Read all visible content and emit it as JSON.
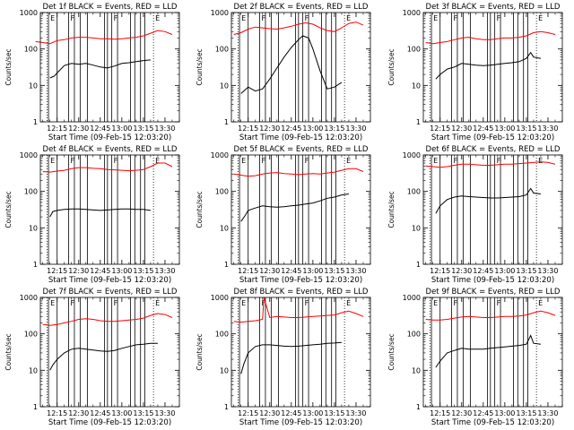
{
  "colors": {
    "events": "#000000",
    "lld": "#ff0000",
    "axes": "#000000"
  },
  "chart_data": [
    {
      "type": "line",
      "title": "Det 1f BLACK = Events, RED = LLD",
      "xlabel": "Start Time (09-Feb-15 12:03:20)",
      "ylabel": "Counts/sec",
      "yscale": "log",
      "ylim": [
        1,
        1000
      ],
      "y_ticks": [
        "1",
        "10",
        "100",
        "1000"
      ],
      "x_ticks": [
        "12:15",
        "12:30",
        "12:45",
        "13:00",
        "13:15",
        "13:30"
      ],
      "series": [
        {
          "name": "BLACK = Events",
          "x": [
            "12:10",
            "12:13",
            "12:15",
            "12:20",
            "12:25",
            "12:30",
            "12:35",
            "12:40",
            "12:45",
            "12:50",
            "12:55",
            "13:00",
            "13:05",
            "13:10",
            "13:15",
            "13:20"
          ],
          "values": [
            16,
            18,
            22,
            35,
            40,
            38,
            40,
            36,
            32,
            30,
            34,
            40,
            42,
            45,
            48,
            50
          ]
        },
        {
          "name": "RED = LLD",
          "x": [
            "12:00",
            "12:05",
            "12:10",
            "12:15",
            "12:20",
            "12:25",
            "12:30",
            "12:35",
            "12:40",
            "12:45",
            "12:50",
            "12:55",
            "13:00",
            "13:05",
            "13:10",
            "13:15",
            "13:20",
            "13:25",
            "13:30",
            "13:35"
          ],
          "values": [
            160,
            150,
            140,
            170,
            180,
            200,
            210,
            210,
            200,
            190,
            190,
            185,
            190,
            200,
            210,
            230,
            270,
            320,
            300,
            250
          ]
        }
      ]
    },
    {
      "type": "line",
      "title": "Det 2f BLACK = Events, RED = LLD",
      "xlabel": "Start Time (09-Feb-15 12:03:20)",
      "ylabel": "Counts/sec",
      "yscale": "log",
      "ylim": [
        1,
        1000
      ],
      "y_ticks": [
        "1",
        "10",
        "100",
        "1000"
      ],
      "x_ticks": [
        "12:15",
        "12:30",
        "12:45",
        "13:00",
        "13:15",
        "13:30"
      ],
      "series": [
        {
          "name": "BLACK = Events",
          "x": [
            "12:10",
            "12:15",
            "12:20",
            "12:25",
            "12:30",
            "12:35",
            "12:40",
            "12:45",
            "12:50",
            "12:53",
            "12:57",
            "13:00",
            "13:05",
            "13:10",
            "13:15",
            "13:20"
          ],
          "values": [
            6,
            9,
            7,
            8,
            15,
            30,
            60,
            110,
            180,
            230,
            200,
            100,
            25,
            8,
            9,
            12
          ]
        },
        {
          "name": "RED = LLD",
          "x": [
            "12:05",
            "12:10",
            "12:15",
            "12:20",
            "12:25",
            "12:30",
            "12:35",
            "12:40",
            "12:45",
            "12:50",
            "12:55",
            "13:00",
            "13:05",
            "13:10",
            "13:15",
            "13:20",
            "13:25",
            "13:30",
            "13:35"
          ],
          "values": [
            250,
            280,
            350,
            400,
            380,
            360,
            350,
            380,
            420,
            480,
            520,
            480,
            380,
            320,
            300,
            380,
            500,
            550,
            450
          ]
        }
      ]
    },
    {
      "type": "line",
      "title": "Det 3f BLACK = Events, RED = LLD",
      "xlabel": "Start Time (09-Feb-15 12:03:20)",
      "ylabel": "Counts/sec",
      "yscale": "log",
      "ylim": [
        1,
        1000
      ],
      "y_ticks": [
        "1",
        "10",
        "100",
        "1000"
      ],
      "x_ticks": [
        "12:15",
        "12:30",
        "12:45",
        "13:00",
        "13:15",
        "13:30"
      ],
      "series": [
        {
          "name": "BLACK = Events",
          "x": [
            "12:12",
            "12:15",
            "12:20",
            "12:25",
            "12:30",
            "12:35",
            "12:40",
            "12:45",
            "12:50",
            "12:55",
            "13:00",
            "13:05",
            "13:10",
            "13:15",
            "13:18",
            "13:20",
            "13:25"
          ],
          "values": [
            15,
            20,
            28,
            32,
            40,
            38,
            36,
            35,
            36,
            38,
            40,
            42,
            45,
            55,
            80,
            60,
            55
          ]
        },
        {
          "name": "RED = LLD",
          "x": [
            "12:05",
            "12:10",
            "12:15",
            "12:20",
            "12:25",
            "12:30",
            "12:35",
            "12:40",
            "12:45",
            "12:50",
            "12:55",
            "13:00",
            "13:05",
            "13:10",
            "13:15",
            "13:20",
            "13:25",
            "13:30",
            "13:35"
          ],
          "values": [
            150,
            140,
            150,
            160,
            180,
            200,
            210,
            190,
            180,
            180,
            190,
            200,
            200,
            210,
            230,
            280,
            300,
            280,
            250
          ]
        }
      ]
    },
    {
      "type": "line",
      "title": "Det 4f BLACK = Events, RED = LLD",
      "xlabel": "Start Time (09-Feb-15 12:03:20)",
      "ylabel": "Counts/sec",
      "yscale": "log",
      "ylim": [
        1,
        1000
      ],
      "y_ticks": [
        "1",
        "10",
        "100",
        "1000"
      ],
      "x_ticks": [
        "12:15",
        "12:30",
        "12:45",
        "13:00",
        "13:15",
        "13:30"
      ],
      "series": [
        {
          "name": "BLACK = Events",
          "x": [
            "12:10",
            "12:12",
            "12:15",
            "12:20",
            "12:25",
            "12:30",
            "12:35",
            "12:40",
            "12:45",
            "12:50",
            "12:55",
            "13:00",
            "13:05",
            "13:10",
            "13:15",
            "13:20"
          ],
          "values": [
            20,
            28,
            30,
            32,
            33,
            33,
            32,
            31,
            30,
            31,
            32,
            33,
            33,
            32,
            32,
            30
          ]
        },
        {
          "name": "RED = LLD",
          "x": [
            "12:05",
            "12:10",
            "12:15",
            "12:20",
            "12:25",
            "12:30",
            "12:35",
            "12:40",
            "12:45",
            "12:50",
            "12:55",
            "13:00",
            "13:05",
            "13:10",
            "13:15",
            "13:20",
            "13:25",
            "13:30",
            "13:35"
          ],
          "values": [
            350,
            340,
            360,
            380,
            420,
            450,
            450,
            430,
            420,
            400,
            390,
            380,
            370,
            380,
            400,
            480,
            600,
            600,
            480
          ]
        }
      ]
    },
    {
      "type": "line",
      "title": "Det 5f BLACK = Events, RED = LLD",
      "xlabel": "Start Time (09-Feb-15 12:03:20)",
      "ylabel": "Counts/sec",
      "yscale": "log",
      "ylim": [
        1,
        1000
      ],
      "y_ticks": [
        "1",
        "10",
        "100",
        "1000"
      ],
      "x_ticks": [
        "12:15",
        "12:30",
        "12:45",
        "13:00",
        "13:15",
        "13:30"
      ],
      "series": [
        {
          "name": "BLACK = Events",
          "x": [
            "12:10",
            "12:13",
            "12:15",
            "12:20",
            "12:25",
            "12:30",
            "12:35",
            "12:40",
            "12:45",
            "12:50",
            "12:55",
            "13:00",
            "13:05",
            "13:10",
            "13:15",
            "13:20",
            "13:25"
          ],
          "values": [
            15,
            22,
            30,
            35,
            40,
            38,
            37,
            38,
            40,
            42,
            45,
            48,
            55,
            65,
            70,
            80,
            85
          ]
        },
        {
          "name": "RED = LLD",
          "x": [
            "12:05",
            "12:10",
            "12:15",
            "12:20",
            "12:25",
            "12:30",
            "12:35",
            "12:40",
            "12:45",
            "12:50",
            "12:55",
            "13:00",
            "13:05",
            "13:10",
            "13:15",
            "13:20",
            "13:25",
            "13:30",
            "13:35"
          ],
          "values": [
            300,
            280,
            260,
            270,
            300,
            320,
            330,
            310,
            300,
            290,
            300,
            310,
            300,
            320,
            340,
            380,
            420,
            420,
            350
          ]
        }
      ]
    },
    {
      "type": "line",
      "title": "Det 6f BLACK = Events, RED = LLD",
      "xlabel": "Start Time (09-Feb-15 12:03:20)",
      "ylabel": "Counts/sec",
      "yscale": "log",
      "ylim": [
        1,
        1000
      ],
      "y_ticks": [
        "1",
        "10",
        "100",
        "1000"
      ],
      "x_ticks": [
        "12:15",
        "12:30",
        "12:45",
        "13:00",
        "13:15",
        "13:30"
      ],
      "series": [
        {
          "name": "BLACK = Events",
          "x": [
            "12:12",
            "12:15",
            "12:20",
            "12:25",
            "12:30",
            "12:35",
            "12:40",
            "12:45",
            "12:50",
            "12:55",
            "13:00",
            "13:05",
            "13:10",
            "13:15",
            "13:18",
            "13:20",
            "13:25"
          ],
          "values": [
            25,
            40,
            60,
            70,
            75,
            72,
            70,
            68,
            66,
            66,
            68,
            70,
            72,
            80,
            120,
            90,
            85
          ]
        },
        {
          "name": "RED = LLD",
          "x": [
            "12:05",
            "12:10",
            "12:15",
            "12:20",
            "12:25",
            "12:30",
            "12:35",
            "12:40",
            "12:45",
            "12:50",
            "12:55",
            "13:00",
            "13:05",
            "13:10",
            "13:15",
            "13:20",
            "13:25",
            "13:30",
            "13:35"
          ],
          "values": [
            500,
            480,
            460,
            480,
            520,
            560,
            560,
            540,
            520,
            520,
            540,
            560,
            560,
            580,
            600,
            620,
            650,
            620,
            560
          ]
        }
      ]
    },
    {
      "type": "line",
      "title": "Det 7f BLACK = Events, RED = LLD",
      "xlabel": "Start Time (09-Feb-15 12:03:20)",
      "ylabel": "Counts/sec",
      "yscale": "log",
      "ylim": [
        1,
        1000
      ],
      "y_ticks": [
        "1",
        "10",
        "100",
        "1000"
      ],
      "x_ticks": [
        "12:15",
        "12:30",
        "12:45",
        "13:00",
        "13:15",
        "13:30"
      ],
      "series": [
        {
          "name": "BLACK = Events",
          "x": [
            "12:10",
            "12:12",
            "12:15",
            "12:20",
            "12:25",
            "12:30",
            "12:35",
            "12:40",
            "12:45",
            "12:50",
            "12:55",
            "13:00",
            "13:05",
            "13:10",
            "13:15",
            "13:20",
            "13:25"
          ],
          "values": [
            10,
            14,
            20,
            30,
            38,
            40,
            38,
            36,
            34,
            33,
            35,
            40,
            45,
            50,
            52,
            55,
            55
          ]
        },
        {
          "name": "RED = LLD",
          "x": [
            "12:05",
            "12:10",
            "12:15",
            "12:20",
            "12:25",
            "12:30",
            "12:35",
            "12:40",
            "12:45",
            "12:50",
            "12:55",
            "13:00",
            "13:05",
            "13:10",
            "13:15",
            "13:20",
            "13:25",
            "13:30",
            "13:35"
          ],
          "values": [
            180,
            170,
            180,
            200,
            220,
            250,
            260,
            250,
            230,
            220,
            220,
            230,
            240,
            250,
            270,
            320,
            360,
            340,
            280
          ]
        }
      ]
    },
    {
      "type": "line",
      "title": "Det 8f BLACK = Events, RED = LLD",
      "xlabel": "Start Time (09-Feb-15 12:03:20)",
      "ylabel": "Counts/sec",
      "yscale": "log",
      "ylim": [
        1,
        1000
      ],
      "y_ticks": [
        "1",
        "10",
        "100",
        "1000"
      ],
      "x_ticks": [
        "12:15",
        "12:30",
        "12:45",
        "13:00",
        "13:15",
        "13:30"
      ],
      "series": [
        {
          "name": "BLACK = Events",
          "x": [
            "12:10",
            "12:12",
            "12:15",
            "12:20",
            "12:25",
            "12:30",
            "12:35",
            "12:40",
            "12:45",
            "12:50",
            "12:55",
            "13:00",
            "13:05",
            "13:10",
            "13:15",
            "13:20"
          ],
          "values": [
            8,
            15,
            30,
            45,
            50,
            50,
            48,
            46,
            45,
            46,
            48,
            50,
            52,
            55,
            56,
            58
          ]
        },
        {
          "name": "RED = LLD",
          "x": [
            "12:05",
            "12:10",
            "12:15",
            "12:20",
            "12:25",
            "12:26",
            "12:30",
            "12:35",
            "12:40",
            "12:45",
            "12:50",
            "12:55",
            "13:00",
            "13:05",
            "13:10",
            "13:15",
            "13:20",
            "13:25",
            "13:30",
            "13:35"
          ],
          "values": [
            220,
            210,
            220,
            230,
            250,
            1000,
            280,
            300,
            290,
            280,
            280,
            290,
            300,
            310,
            320,
            330,
            380,
            420,
            360,
            300
          ]
        }
      ]
    },
    {
      "type": "line",
      "title": "Det 9f BLACK = Events, RED = LLD",
      "xlabel": "Start Time (09-Feb-15 12:03:20)",
      "ylabel": "Counts/sec",
      "yscale": "log",
      "ylim": [
        1,
        1000
      ],
      "y_ticks": [
        "1",
        "10",
        "100",
        "1000"
      ],
      "x_ticks": [
        "12:15",
        "12:30",
        "12:45",
        "13:00",
        "13:15",
        "13:30"
      ],
      "series": [
        {
          "name": "BLACK = Events",
          "x": [
            "12:12",
            "12:15",
            "12:20",
            "12:25",
            "12:30",
            "12:35",
            "12:40",
            "12:45",
            "12:50",
            "12:55",
            "13:00",
            "13:05",
            "13:10",
            "13:15",
            "13:18",
            "13:20",
            "13:25"
          ],
          "values": [
            12,
            18,
            30,
            35,
            40,
            38,
            38,
            38,
            40,
            42,
            44,
            46,
            48,
            52,
            90,
            55,
            52
          ]
        },
        {
          "name": "RED = LLD",
          "x": [
            "12:05",
            "12:10",
            "12:15",
            "12:20",
            "12:25",
            "12:30",
            "12:35",
            "12:40",
            "12:45",
            "12:50",
            "12:55",
            "13:00",
            "13:05",
            "13:10",
            "13:15",
            "13:20",
            "13:25",
            "13:30",
            "13:35"
          ],
          "values": [
            250,
            240,
            240,
            250,
            270,
            290,
            300,
            290,
            280,
            280,
            290,
            300,
            300,
            310,
            330,
            380,
            420,
            380,
            320
          ]
        }
      ]
    }
  ],
  "intervals": {
    "solid": [
      "12:09",
      "12:15",
      "12:23",
      "12:27",
      "12:31",
      "12:36",
      "12:48",
      "12:50",
      "12:53",
      "12:57",
      "13:06",
      "13:09",
      "13:13",
      "13:16"
    ],
    "dotted": [
      "12:08",
      "13:22"
    ],
    "markers": [
      {
        "at": "12:09",
        "label": "E"
      },
      {
        "at": "12:23",
        "label": "F"
      },
      {
        "at": "12:53",
        "label": "F"
      },
      {
        "at": "13:22",
        "label": "E"
      }
    ]
  }
}
